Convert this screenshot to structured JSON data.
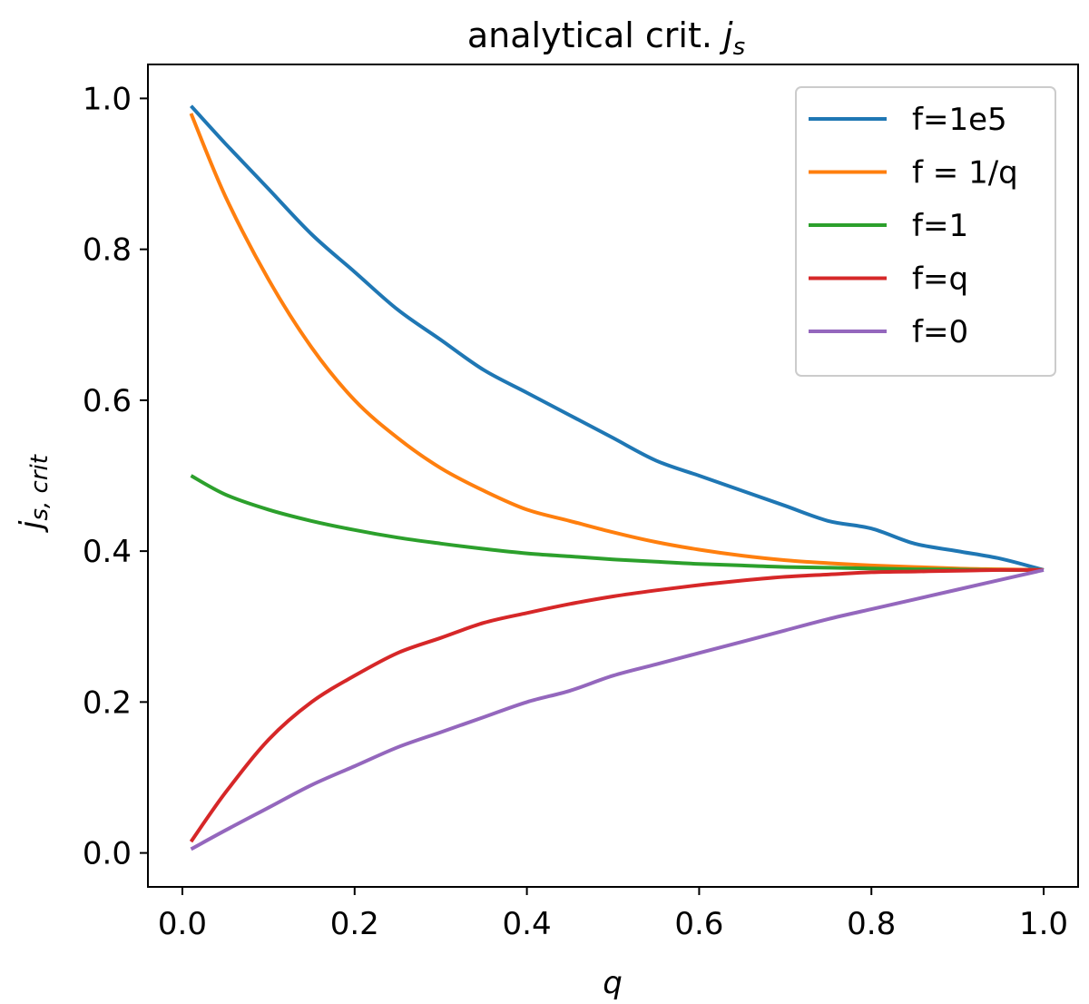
{
  "chart_data": {
    "type": "line",
    "title": "analytical crit. ",
    "title_math": "j",
    "title_math_sub": "s",
    "xlabel": "q",
    "ylabel": "j",
    "ylabel_sub": "s, crit",
    "xlim": [
      -0.04,
      1.04
    ],
    "ylim": [
      -0.045,
      1.045
    ],
    "xticks": [
      0.0,
      0.2,
      0.4,
      0.6,
      0.8,
      1.0
    ],
    "xtick_labels": [
      "0.0",
      "0.2",
      "0.4",
      "0.6",
      "0.8",
      "1.0"
    ],
    "yticks": [
      0.0,
      0.2,
      0.4,
      0.6,
      0.8,
      1.0
    ],
    "ytick_labels": [
      "0.0",
      "0.2",
      "0.4",
      "0.6",
      "0.8",
      "1.0"
    ],
    "grid": false,
    "legend_position": "top-right",
    "x": [
      0.01,
      0.05,
      0.1,
      0.15,
      0.2,
      0.25,
      0.3,
      0.35,
      0.4,
      0.45,
      0.5,
      0.55,
      0.6,
      0.65,
      0.7,
      0.75,
      0.8,
      0.85,
      0.9,
      0.95,
      1.0
    ],
    "series": [
      {
        "name": "f=1e5",
        "color": "#1f77b4",
        "values": [
          0.99,
          0.94,
          0.88,
          0.82,
          0.77,
          0.72,
          0.68,
          0.64,
          0.61,
          0.58,
          0.55,
          0.52,
          0.5,
          0.48,
          0.46,
          0.44,
          0.43,
          0.41,
          0.4,
          0.39,
          0.375
        ]
      },
      {
        "name": "f = 1/q",
        "color": "#ff7f0e",
        "values": [
          0.98,
          0.87,
          0.76,
          0.67,
          0.6,
          0.55,
          0.51,
          0.48,
          0.455,
          0.44,
          0.425,
          0.412,
          0.402,
          0.394,
          0.388,
          0.384,
          0.381,
          0.379,
          0.377,
          0.376,
          0.375
        ]
      },
      {
        "name": "f=1",
        "color": "#2ca02c",
        "values": [
          0.5,
          0.475,
          0.455,
          0.44,
          0.428,
          0.418,
          0.41,
          0.403,
          0.397,
          0.393,
          0.389,
          0.386,
          0.383,
          0.381,
          0.379,
          0.378,
          0.377,
          0.376,
          0.3755,
          0.375,
          0.375
        ]
      },
      {
        "name": "f=q",
        "color": "#d62728",
        "values": [
          0.015,
          0.08,
          0.15,
          0.2,
          0.235,
          0.265,
          0.285,
          0.305,
          0.318,
          0.33,
          0.34,
          0.348,
          0.355,
          0.361,
          0.366,
          0.369,
          0.372,
          0.373,
          0.374,
          0.375,
          0.375
        ]
      },
      {
        "name": "f=0",
        "color": "#9467bd",
        "values": [
          0.005,
          0.03,
          0.06,
          0.09,
          0.115,
          0.14,
          0.16,
          0.18,
          0.2,
          0.215,
          0.235,
          0.25,
          0.265,
          0.28,
          0.295,
          0.31,
          0.323,
          0.336,
          0.349,
          0.362,
          0.375
        ]
      }
    ]
  }
}
